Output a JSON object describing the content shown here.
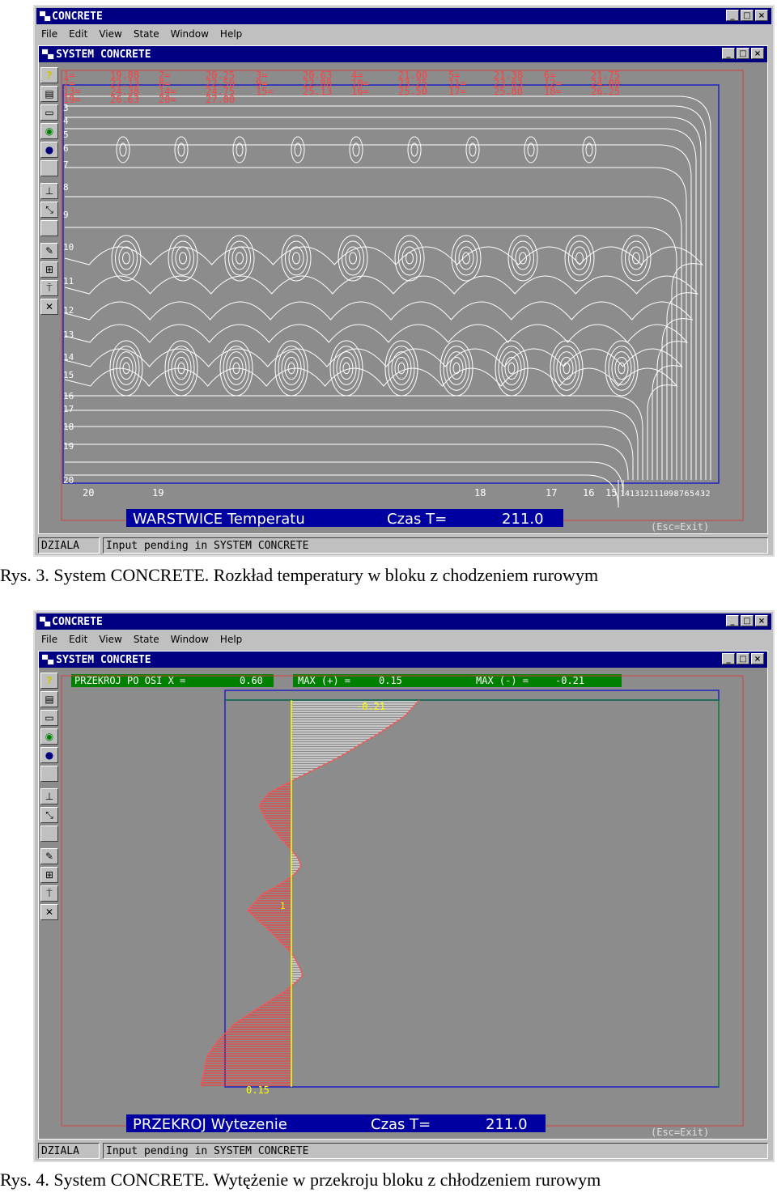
{
  "fig1": {
    "app_title": "CONCRETE",
    "menu": [
      "File",
      "Edit",
      "View",
      "State",
      "Window",
      "Help"
    ],
    "child_title": "SYSTEM CONCRETE",
    "legend_rows": [
      [
        "1=",
        "19.88",
        "2=",
        "20.25",
        "3=",
        "20.63",
        "4=",
        "21.00",
        "5=",
        "21.38",
        "6=",
        "21.75"
      ],
      [
        "7=",
        "22.13",
        "8=",
        "22.50",
        "9=",
        "22.88",
        "10=",
        "23.25",
        "11=",
        "23.63",
        "12=",
        "24.00"
      ],
      [
        "13=",
        "24.38",
        "14=",
        "24.75",
        "15=",
        "25.13",
        "16=",
        "25.50",
        "17=",
        "25.88",
        "18=",
        "26.25"
      ],
      [
        "19=",
        "26.63",
        "20=",
        "27.00"
      ]
    ],
    "left_labels": [
      "3",
      "4",
      "5",
      "6",
      "7",
      "8",
      "9",
      "10",
      "11",
      "12",
      "13",
      "14",
      "15",
      "16",
      "17",
      "18",
      "19",
      "20"
    ],
    "bottom_labels": [
      "20",
      "19",
      "18",
      "17",
      "16",
      "15",
      "14",
      "13",
      "12",
      "11",
      "10",
      "9",
      "8",
      "7",
      "6",
      "5",
      "4",
      "3",
      "2"
    ],
    "banner": "WARSTWICE Temperatu",
    "banner_time_label": "Czas T=",
    "banner_time": "211.0",
    "esc": "(Esc=Exit)",
    "status_left": "DZIALA",
    "status_right": "Input pending in SYSTEM CONCRETE",
    "caption": "Rys. 3.  System CONCRETE. Rozkład temperatury w bloku z chodzeniem rurowym"
  },
  "fig2": {
    "app_title": "CONCRETE",
    "menu": [
      "File",
      "Edit",
      "View",
      "State",
      "Window",
      "Help"
    ],
    "child_title": "SYSTEM CONCRETE",
    "header_left": "PRZEKROJ PO OSI X =",
    "header_left_val": "0.60",
    "header_mid": "MAX (+) =",
    "header_mid_val": "0.15",
    "header_right": "MAX (-) =",
    "header_right_val": "-0.21",
    "top_value": "-0.21",
    "bottom_value": "0.15",
    "mid_mark": "1",
    "banner": "PRZEKROJ Wytezenie",
    "banner_time_label": "Czas T=",
    "banner_time": "211.0",
    "esc": "(Esc=Exit)",
    "status_left": "DZIALA",
    "status_right": "Input pending in SYSTEM CONCRETE",
    "caption": "Rys. 4. System CONCRETE. Wytężenie w przekroju bloku z chłodzeniem rurowym"
  },
  "toolbar_icons": [
    "help-icon",
    "print-icon",
    "monitor-icon",
    "globe-icon",
    "disk-icon",
    "blank-icon",
    "pin-icon",
    "link-icon",
    "blank-icon",
    "pencil-icon",
    "edit-icon",
    "lamp-icon",
    "close-icon"
  ],
  "colors": {
    "title": "#000080",
    "plot_bg": "#8c8c8c",
    "red": "#ff3030",
    "white": "#ffffff",
    "green_bar": "#008000",
    "yellow": "#ffff00"
  }
}
